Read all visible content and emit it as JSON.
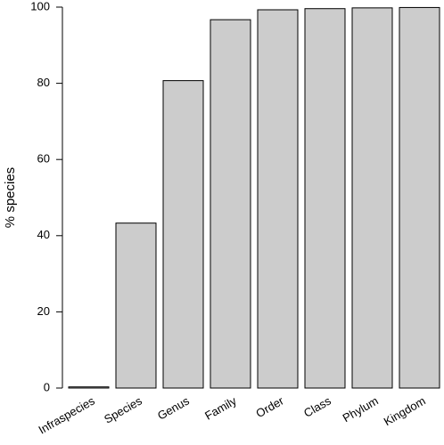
{
  "chart_data": {
    "type": "bar",
    "y_label": "% species",
    "categories": [
      "Infraspecies",
      "Species",
      "Genus",
      "Family",
      "Order",
      "Class",
      "Phylum",
      "Kingdom"
    ],
    "values": [
      0.3,
      43.3,
      80.7,
      96.7,
      99.3,
      99.6,
      99.8,
      99.9
    ],
    "color": "#cccccc",
    "ylim": [
      0,
      100
    ],
    "yticks": [
      0,
      20,
      40,
      60,
      80,
      100
    ],
    "grid": false
  }
}
